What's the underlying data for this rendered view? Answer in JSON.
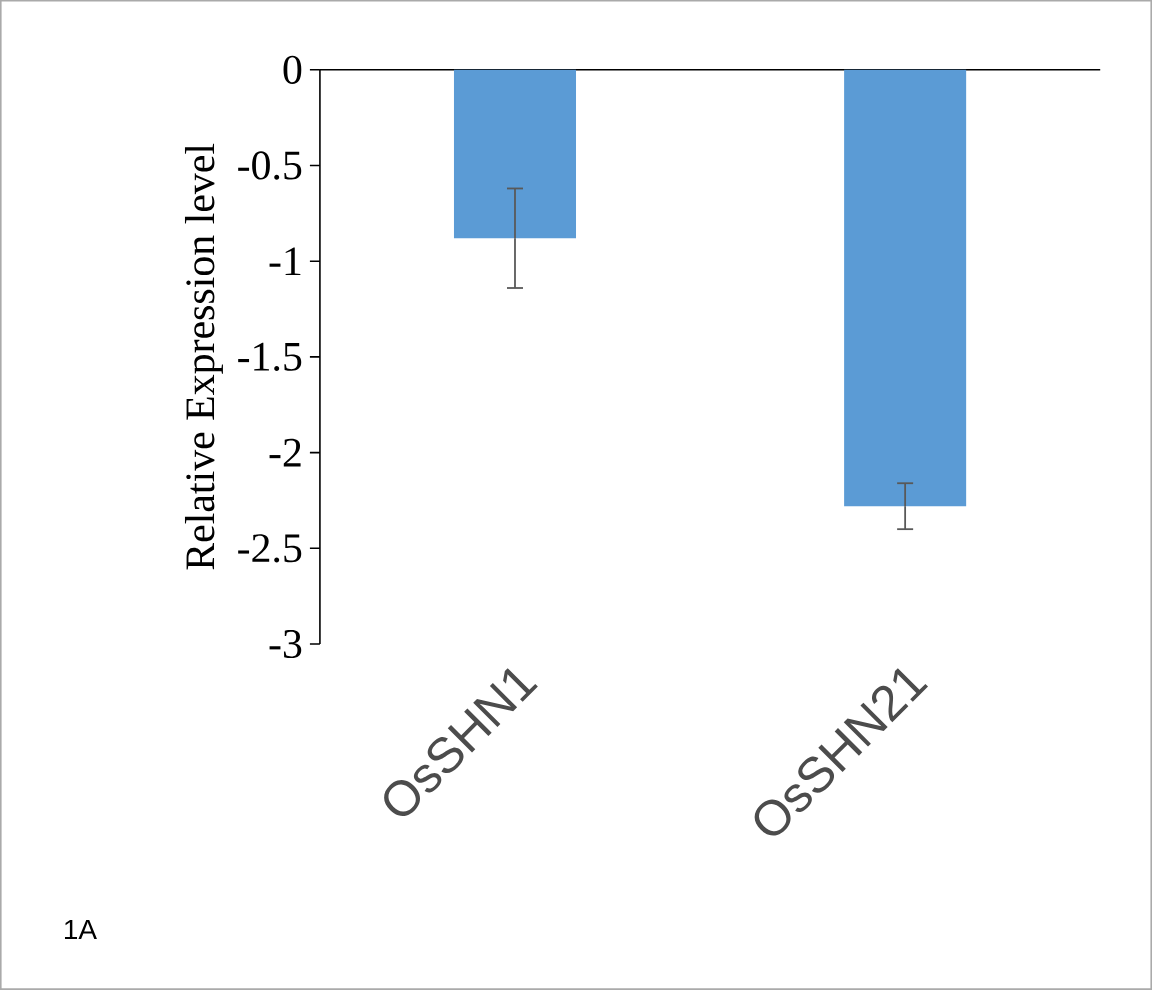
{
  "chart_data": {
    "type": "bar",
    "ylabel": "Relative Expression level",
    "categories": [
      "OsSHN1",
      "OsSHN21"
    ],
    "values": [
      -0.88,
      -2.28
    ],
    "errors": [
      0.26,
      0.12
    ],
    "color": "#5b9bd5",
    "ylim": [
      -3,
      0
    ],
    "yticks": [
      -3,
      -2.5,
      -2,
      -1.5,
      -1,
      -0.5,
      0
    ],
    "annotations": [
      "1A"
    ]
  }
}
